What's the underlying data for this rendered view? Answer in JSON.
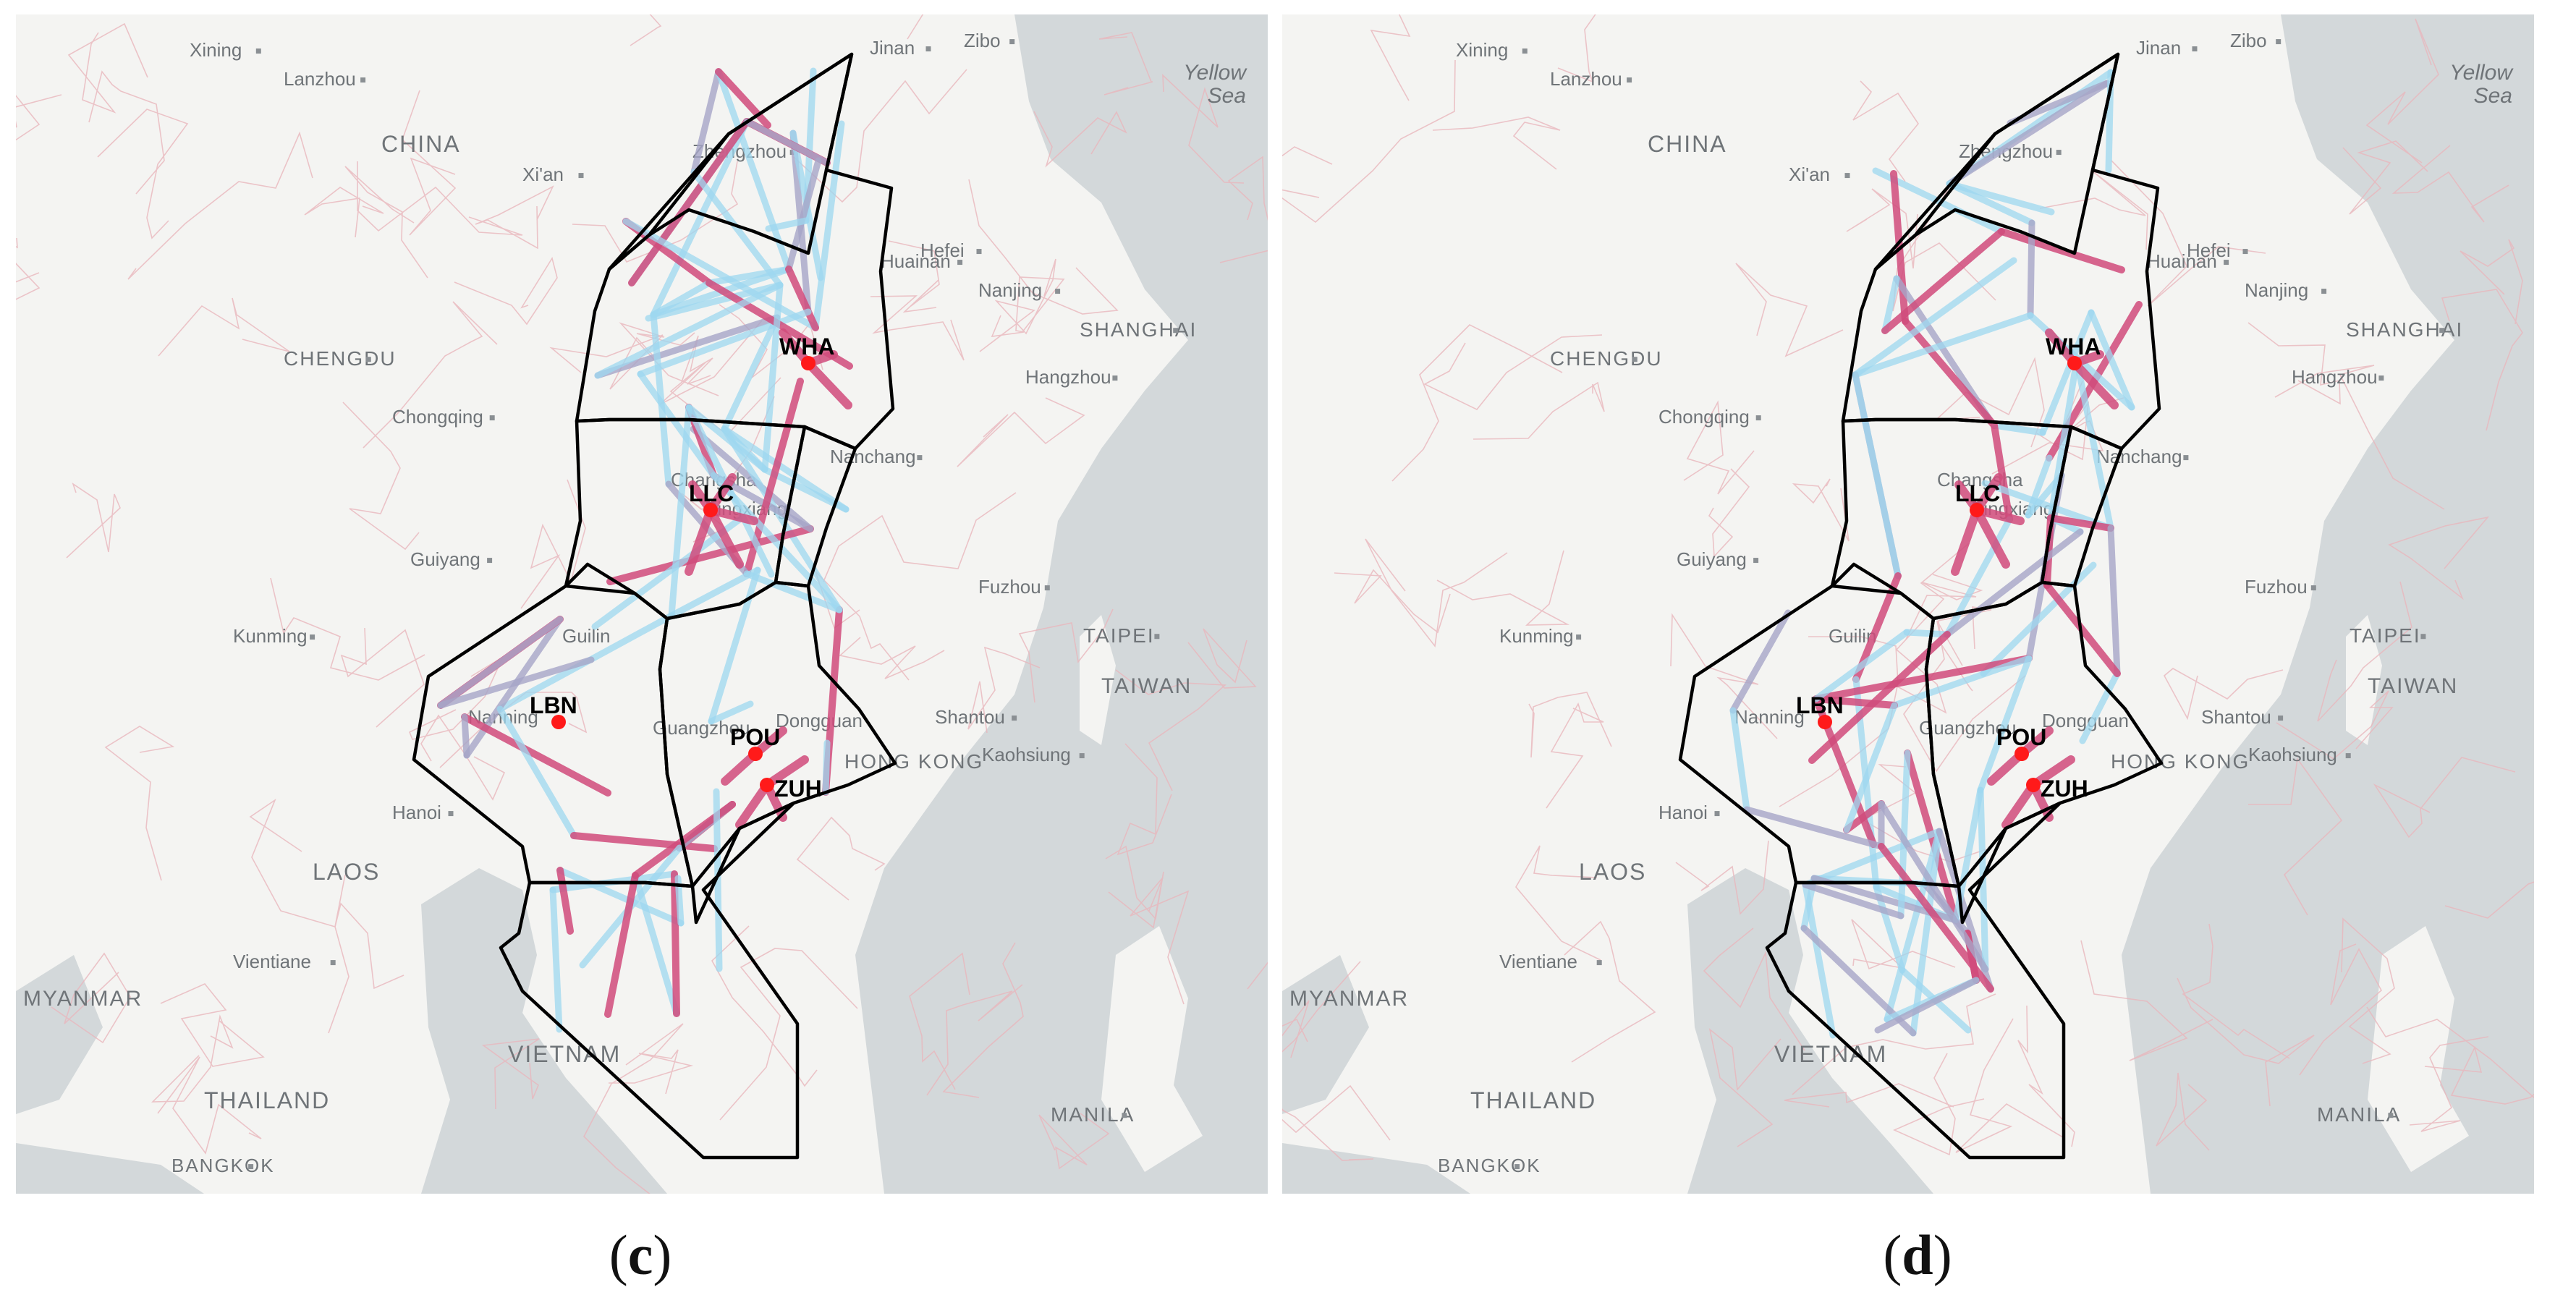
{
  "panels": [
    {
      "id": "c",
      "caption_letter": "c",
      "caption_open": "(",
      "caption_close": ")",
      "places": [
        "Xining",
        "Lanzhou",
        "CHINA",
        "Xi'an",
        "Zhengzhou",
        "Jinan",
        "Zibo",
        "Yellow",
        "Sea",
        "Hefei",
        "Huainan",
        "Nanjing",
        "SHANGHAI",
        "Hangzhou",
        "CHENGDU",
        "Chongqing",
        "Nanchang",
        "Changsha",
        "Pingxiang",
        "Guiyang",
        "Fuzhou",
        "Kunming",
        "TAIPEI",
        "TAIWAN",
        "Guilin",
        "Nanning",
        "Guangzhou",
        "Dongguan",
        "HONG KONG",
        "Shantou",
        "Kaohsiung",
        "Hanoi",
        "LAOS",
        "Vientiane",
        "VIETNAM",
        "THAILAND",
        "BANGKOK",
        "MANILA",
        "MYANMAR"
      ],
      "stations": [
        "WHA",
        "LLC",
        "LBN",
        "POU",
        "ZUH"
      ]
    },
    {
      "id": "d",
      "caption_letter": "d",
      "caption_open": "(",
      "caption_close": ")",
      "places": [
        "Xining",
        "Lanzhou",
        "CHINA",
        "Xi'an",
        "Zhengzhou",
        "Jinan",
        "Zibo",
        "Yellow",
        "Sea",
        "Hefei",
        "Huainan",
        "Nanjing",
        "SHANGHAI",
        "Hangzhou",
        "CHENGDU",
        "Chongqing",
        "Nanchang",
        "Changsha",
        "Pingxiang",
        "Guiyang",
        "Fuzhou",
        "Kunming",
        "TAIPEI",
        "TAIWAN",
        "Guilin",
        "Nanning",
        "Guangzhou",
        "Dongguan",
        "HONG KONG",
        "Shantou",
        "Kaohsiung",
        "Hanoi",
        "LAOS",
        "Vientiane",
        "VIETNAM",
        "THAILAND",
        "BANGKOK",
        "MANILA",
        "MYANMAR"
      ],
      "stations": [
        "WHA",
        "LLC",
        "LBN",
        "POU",
        "ZUH"
      ]
    }
  ],
  "colors": {
    "land": "#f4f4f2",
    "sea": "#d3d8da",
    "borders": "#e9b7bd",
    "region_outline": "#000000",
    "link_low": "#9ed8f0",
    "link_mid": "#a7a6c8",
    "link_high": "#d14c7c",
    "station": "#ff1a1a",
    "label_major": "#6f7478",
    "label_minor": "#6f7478"
  }
}
